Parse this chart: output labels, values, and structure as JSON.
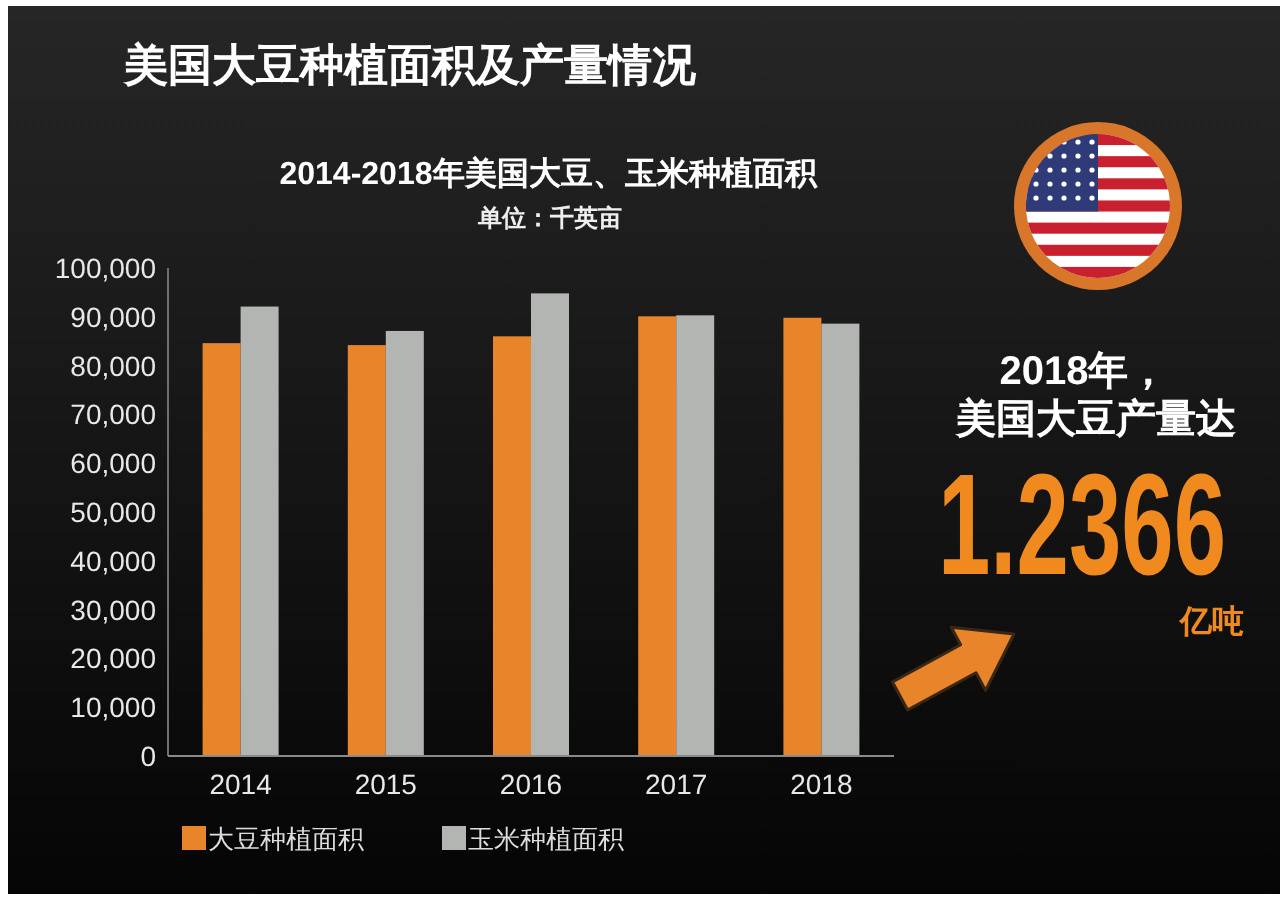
{
  "chart_data": [
    {
      "type": "other",
      "title": "美国大豆种植面积及产量情况"
    },
    {
      "type": "bar",
      "title": "2014-2018年美国大豆、玉米种植面积",
      "subtitle": "单位：千英亩",
      "categories": [
        "2014",
        "2015",
        "2016",
        "2017",
        "2018"
      ],
      "series": [
        {
          "name": "大豆种植面积",
          "color": "#e8842a",
          "values": [
            84600,
            84200,
            86000,
            90100,
            89800
          ]
        },
        {
          "name": "玉米种植面积",
          "color": "#b3b5b3",
          "values": [
            92100,
            87100,
            94800,
            90300,
            88600
          ]
        }
      ],
      "ylim": [
        0,
        100000
      ],
      "yticks": [
        0,
        {
          "value": 10000,
          "label": "10,000"
        },
        {
          "value": 20000,
          "label": "20,000"
        },
        {
          "value": 30000,
          "label": "30,000"
        },
        {
          "value": 40000,
          "label": "40,000"
        },
        {
          "value": 50000,
          "label": "50,000"
        },
        {
          "value": 60000,
          "label": "60,000"
        },
        {
          "value": 70000,
          "label": "70,000"
        },
        {
          "value": 80000,
          "label": "80,000"
        },
        {
          "value": 90000,
          "label": "90,000"
        },
        {
          "value": 100000,
          "label": "100,000"
        }
      ],
      "legend": "bottom"
    },
    {
      "type": "other",
      "annotations": [
        "2018年，",
        "美国大豆产量达",
        "1.2366",
        "亿吨"
      ]
    }
  ]
}
